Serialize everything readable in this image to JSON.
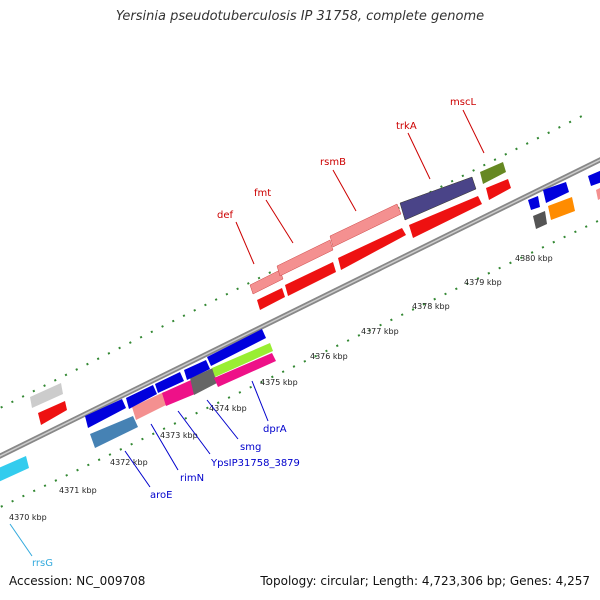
{
  "title": "Yersinia pseudotuberculosis IP 31758, complete genome",
  "footer": {
    "accession": "Accession: NC_009708",
    "topology": "Topology: circular; Length: 4,723,306 bp; Genes: 4,257"
  },
  "colors": {
    "backbone": "#888888",
    "tick": "#338833",
    "forward_label": "#cc0000",
    "reverse_label": "#0000cc",
    "rrna_label": "#33aadd"
  },
  "scale": {
    "unit": "kbp",
    "labels": [
      "4370 kbp",
      "4371 kbp",
      "4372 kbp",
      "4373 kbp",
      "4374 kbp",
      "4375 kbp",
      "4376 kbp",
      "4377 kbp",
      "4378 kbp",
      "4379 kbp",
      "4380 kbp"
    ]
  },
  "gene_labels": {
    "forward": [
      "def",
      "fmt",
      "rsmB",
      "trkA",
      "mscL"
    ],
    "reverse": [
      "aroE",
      "rimN",
      "YpsIP31758_3879",
      "smg",
      "dprA"
    ],
    "rrna": [
      "rrsG"
    ]
  }
}
